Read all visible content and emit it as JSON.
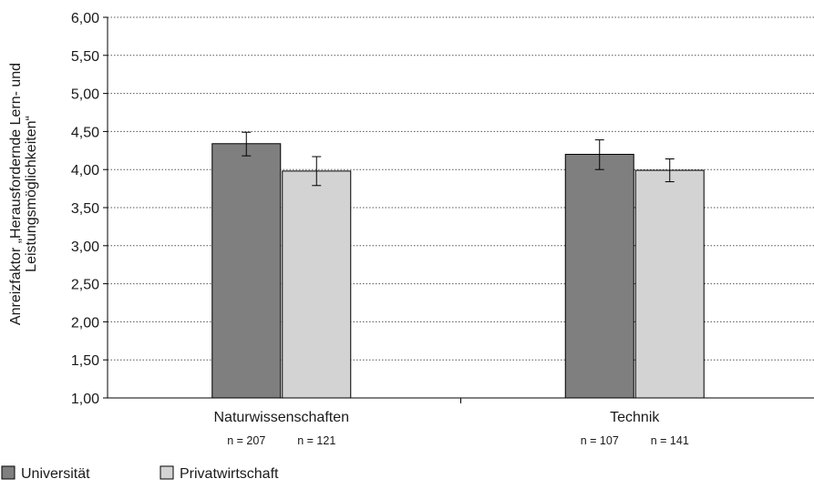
{
  "chart_data": {
    "type": "bar",
    "ylabel_lines": [
      "Anreizfaktor „Herausfordernde Lern- und",
      "Leistungsmöglichkeiten“"
    ],
    "ylim": [
      1.0,
      6.0
    ],
    "ytick_step": 0.5,
    "yticks": [
      "1,00",
      "1,50",
      "2,00",
      "2,50",
      "3,00",
      "3,50",
      "4,00",
      "4,50",
      "5,00",
      "5,50",
      "6,00"
    ],
    "grid": true,
    "categories": [
      "Naturwissenschaften",
      "Technik"
    ],
    "n_labels": [
      [
        "n = 207",
        "n = 121"
      ],
      [
        "n = 107",
        "n = 141"
      ]
    ],
    "series": [
      {
        "name": "Universität",
        "color": "#7f7f7f",
        "values": [
          4.34,
          4.2
        ],
        "error_low": [
          4.18,
          4.0
        ],
        "error_high": [
          4.49,
          4.39
        ]
      },
      {
        "name": "Privatwirtschaft",
        "color": "#d3d3d3",
        "values": [
          3.98,
          3.99
        ],
        "error_low": [
          3.79,
          3.84
        ],
        "error_high": [
          4.17,
          4.14
        ]
      }
    ],
    "legend_position": "bottom-left"
  }
}
